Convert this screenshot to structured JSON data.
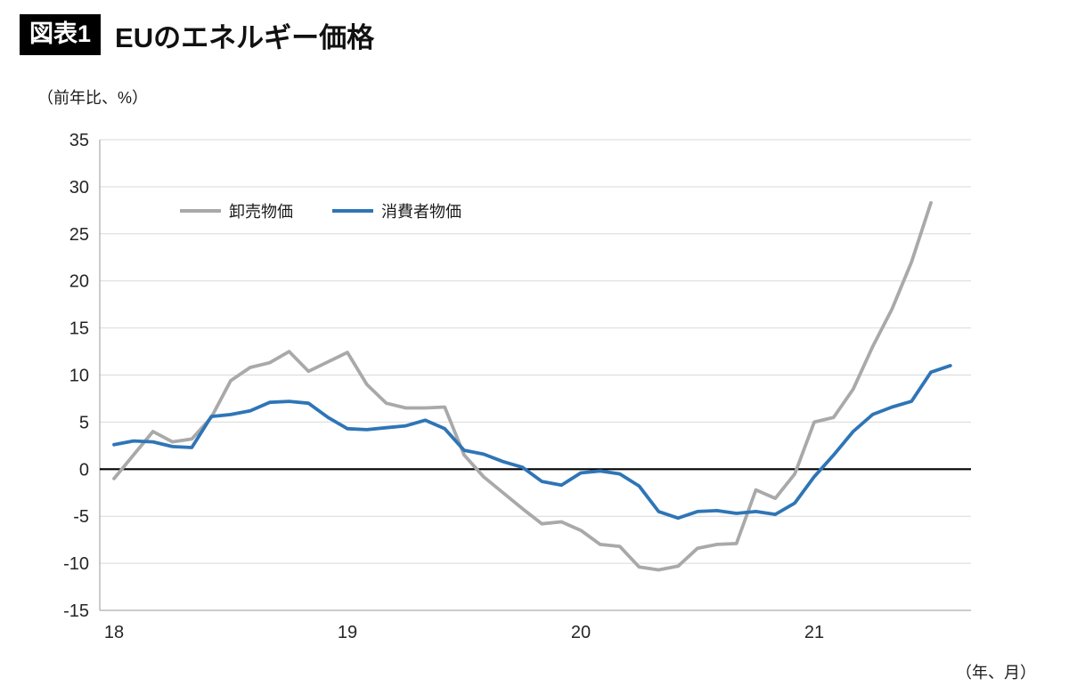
{
  "header": {
    "badge": "図表1",
    "title": "EUのエネルギー価格"
  },
  "colors": {
    "badge_bg": "#000000",
    "grid": "#d9d9d9",
    "zero_line": "#000000",
    "axis": "#999999",
    "tick_text": "#262626",
    "wholesale_line": "#a9a9a9",
    "consumer_line": "#2e75b6"
  },
  "chart_data": {
    "type": "line",
    "title": "EUのエネルギー価格",
    "ylabel": "（前年比、%）",
    "xlabel": "（年、月）",
    "ylim": [
      -15,
      35
    ],
    "y_tick_step": 5,
    "grid": true,
    "legend_position": "top-left-inside",
    "x_frequency": "monthly",
    "total_months": 45,
    "x_tick_labels": [
      "18",
      "19",
      "20",
      "21"
    ],
    "x_tick_month_indices": [
      0,
      12,
      24,
      36
    ],
    "series": [
      {
        "key": "wholesale",
        "name": "卸売物価",
        "color": "#a9a9a9",
        "values": [
          -1.0,
          1.5,
          4.0,
          2.9,
          3.2,
          5.5,
          9.4,
          10.8,
          11.3,
          12.5,
          10.4,
          11.4,
          12.4,
          9.0,
          7.0,
          6.5,
          6.5,
          6.6,
          1.5,
          -0.8,
          -2.5,
          -4.2,
          -5.8,
          -5.6,
          -6.5,
          -8.0,
          -8.2,
          -10.4,
          -10.7,
          -10.3,
          -8.4,
          -8.0,
          -7.9,
          -2.2,
          -3.1,
          -0.5,
          5.0,
          5.5,
          8.5,
          13.0,
          17.0,
          22.0,
          28.3
        ]
      },
      {
        "key": "consumer",
        "name": "消費者物価",
        "color": "#2e75b6",
        "values": [
          2.6,
          3.0,
          2.9,
          2.4,
          2.3,
          5.6,
          5.8,
          6.2,
          7.1,
          7.2,
          7.0,
          5.5,
          4.3,
          4.2,
          4.4,
          4.6,
          5.2,
          4.3,
          2.0,
          1.6,
          0.8,
          0.2,
          -1.3,
          -1.7,
          -0.4,
          -0.2,
          -0.5,
          -1.8,
          -4.5,
          -5.2,
          -4.5,
          -4.4,
          -4.7,
          -4.5,
          -4.8,
          -3.6,
          -0.8,
          1.5,
          4.0,
          5.8,
          6.6,
          7.2,
          10.3,
          11.0
        ]
      }
    ]
  }
}
